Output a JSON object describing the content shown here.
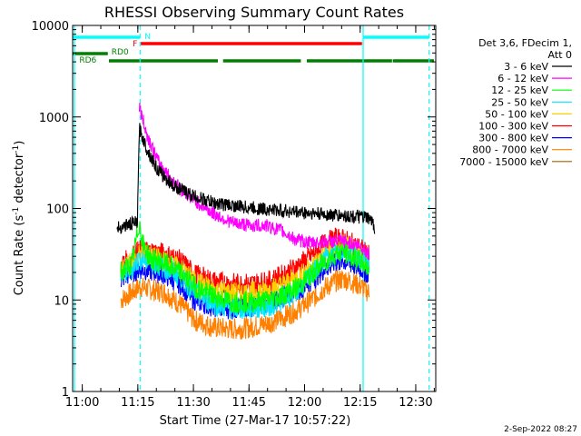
{
  "title": "RHESSI Observing Summary Count Rates",
  "xlabel": "Start Time (27-Mar-17 10:57:22)",
  "ylabel_main": "Count Rate (s",
  "ylabel_sup": "-1",
  "ylabel_mid": " detector",
  "ylabel_sup2": "-1",
  "ylabel_end": ")",
  "date_stamp": "2-Sep-2022 08:27",
  "legend_header_1": "Det 3,6, FDecim 1,",
  "legend_header_2": "Att 0",
  "obs_labels": {
    "night": "N",
    "flare": "F",
    "rd0": "RD0",
    "rd6": "RD6"
  },
  "chart_data": {
    "type": "line",
    "x_unit": "minutes after 10:57:22",
    "xlim": [
      0,
      98
    ],
    "ylim": [
      1,
      10000
    ],
    "yscale": "log",
    "x_ticks": [
      {
        "label": "11:00",
        "x": 2.6
      },
      {
        "label": "11:15",
        "x": 17.6
      },
      {
        "label": "11:30",
        "x": 32.6
      },
      {
        "label": "11:45",
        "x": 47.6
      },
      {
        "label": "12:00",
        "x": 62.6
      },
      {
        "label": "12:15",
        "x": 77.6
      },
      {
        "label": "12:30",
        "x": 92.6
      }
    ],
    "y_ticks": [
      {
        "label": "1",
        "y": 1
      },
      {
        "label": "10",
        "y": 10
      },
      {
        "label": "100",
        "y": 100
      },
      {
        "label": "1000",
        "y": 1000
      },
      {
        "label": "10000",
        "y": 10000
      }
    ],
    "series": [
      {
        "name": "3 - 6 keV",
        "color": "#000000",
        "points": [
          [
            12,
            60
          ],
          [
            14,
            65
          ],
          [
            16,
            68
          ],
          [
            17.5,
            70
          ],
          [
            18,
            750
          ],
          [
            20,
            450
          ],
          [
            23,
            260
          ],
          [
            27,
            180
          ],
          [
            32,
            140
          ],
          [
            38,
            115
          ],
          [
            45,
            105
          ],
          [
            52,
            98
          ],
          [
            60,
            92
          ],
          [
            68,
            86
          ],
          [
            75,
            82
          ],
          [
            78,
            80
          ],
          [
            79.5,
            78
          ],
          [
            81,
            70
          ],
          [
            81.5,
            62
          ]
        ]
      },
      {
        "name": "6 - 12 keV",
        "color": "#ff00ff",
        "points": [
          [
            18,
            1300
          ],
          [
            20,
            650
          ],
          [
            23,
            330
          ],
          [
            27,
            200
          ],
          [
            32,
            130
          ],
          [
            38,
            88
          ],
          [
            43,
            70
          ],
          [
            48,
            65
          ],
          [
            52,
            65
          ],
          [
            56,
            58
          ],
          [
            60,
            46
          ],
          [
            64,
            42
          ],
          [
            68,
            43
          ],
          [
            72,
            44
          ],
          [
            75,
            42
          ],
          [
            78,
            38
          ],
          [
            80,
            32
          ]
        ]
      },
      {
        "name": "12 - 25 keV",
        "color": "#00ff00",
        "points": [
          [
            13,
            20
          ],
          [
            16,
            25
          ],
          [
            18,
            70
          ],
          [
            19,
            40
          ],
          [
            21,
            28
          ],
          [
            25,
            25
          ],
          [
            29,
            20
          ],
          [
            33,
            14
          ],
          [
            38,
            11
          ],
          [
            43,
            9.5
          ],
          [
            48,
            9.5
          ],
          [
            53,
            10
          ],
          [
            57,
            11.5
          ],
          [
            61,
            14
          ],
          [
            65,
            20
          ],
          [
            68,
            26
          ],
          [
            71,
            32
          ],
          [
            73,
            34
          ],
          [
            75,
            30
          ],
          [
            78,
            26
          ],
          [
            80,
            22
          ]
        ]
      },
      {
        "name": "25 - 50 keV",
        "color": "#00e5ff",
        "points": [
          [
            13,
            18
          ],
          [
            16,
            22
          ],
          [
            18,
            28
          ],
          [
            21,
            26
          ],
          [
            25,
            22
          ],
          [
            29,
            18
          ],
          [
            33,
            12
          ],
          [
            38,
            9
          ],
          [
            43,
            8
          ],
          [
            48,
            8
          ],
          [
            53,
            8.5
          ],
          [
            57,
            10
          ],
          [
            61,
            13
          ],
          [
            65,
            20
          ],
          [
            68,
            28
          ],
          [
            71,
            33
          ],
          [
            73,
            35
          ],
          [
            75,
            33
          ],
          [
            78,
            28
          ],
          [
            80,
            24
          ]
        ]
      },
      {
        "name": "50 - 100 keV",
        "color": "#ffd000",
        "points": [
          [
            13,
            20
          ],
          [
            16,
            26
          ],
          [
            18,
            32
          ],
          [
            21,
            30
          ],
          [
            25,
            26
          ],
          [
            29,
            22
          ],
          [
            33,
            16
          ],
          [
            38,
            13
          ],
          [
            43,
            12
          ],
          [
            48,
            12
          ],
          [
            53,
            13
          ],
          [
            57,
            15
          ],
          [
            61,
            18
          ],
          [
            65,
            24
          ],
          [
            68,
            32
          ],
          [
            71,
            38
          ],
          [
            73,
            40
          ],
          [
            75,
            37
          ],
          [
            78,
            30
          ],
          [
            80,
            25
          ]
        ]
      },
      {
        "name": "100 - 300 keV",
        "color": "#ff0000",
        "points": [
          [
            13,
            24
          ],
          [
            16,
            30
          ],
          [
            18,
            35
          ],
          [
            21,
            34
          ],
          [
            25,
            32
          ],
          [
            29,
            27
          ],
          [
            33,
            19
          ],
          [
            38,
            16
          ],
          [
            43,
            15
          ],
          [
            48,
            15
          ],
          [
            53,
            16
          ],
          [
            57,
            19
          ],
          [
            61,
            24
          ],
          [
            65,
            32
          ],
          [
            68,
            42
          ],
          [
            71,
            47
          ],
          [
            73,
            46
          ],
          [
            75,
            42
          ],
          [
            78,
            36
          ],
          [
            80,
            30
          ]
        ]
      },
      {
        "name": "300 - 800 keV",
        "color": "#0000ff",
        "points": [
          [
            13,
            17
          ],
          [
            16,
            20
          ],
          [
            18,
            22
          ],
          [
            21,
            21
          ],
          [
            25,
            19
          ],
          [
            29,
            15
          ],
          [
            33,
            10
          ],
          [
            38,
            8.5
          ],
          [
            43,
            8
          ],
          [
            48,
            8.5
          ],
          [
            53,
            9.5
          ],
          [
            57,
            11
          ],
          [
            61,
            13
          ],
          [
            65,
            17
          ],
          [
            68,
            22
          ],
          [
            71,
            26
          ],
          [
            73,
            27
          ],
          [
            75,
            25
          ],
          [
            78,
            22
          ],
          [
            80,
            19
          ]
        ]
      },
      {
        "name": "800 - 7000 keV",
        "color": "#ff8000",
        "points": [
          [
            13,
            10
          ],
          [
            16,
            12
          ],
          [
            18,
            14
          ],
          [
            21,
            13
          ],
          [
            25,
            12
          ],
          [
            29,
            9
          ],
          [
            33,
            6
          ],
          [
            38,
            5
          ],
          [
            43,
            4.8
          ],
          [
            48,
            5
          ],
          [
            53,
            5.6
          ],
          [
            57,
            6.5
          ],
          [
            61,
            8
          ],
          [
            65,
            10.5
          ],
          [
            68,
            13.5
          ],
          [
            71,
            16
          ],
          [
            73,
            17
          ],
          [
            75,
            16
          ],
          [
            78,
            14
          ],
          [
            80,
            12
          ]
        ]
      },
      {
        "name": "7000 - 15000 keV",
        "color": "#a06000",
        "points": []
      }
    ],
    "observing_bars": [
      {
        "label": "N",
        "color": "#00ffff",
        "segments": [
          [
            0,
            18.2
          ],
          [
            78.4,
            96.2
          ]
        ]
      },
      {
        "label": "F",
        "color": "#ff0000",
        "segments": [
          [
            18.4,
            78.1
          ]
        ]
      },
      {
        "label": "RD0",
        "color": "#008000",
        "segments": [
          [
            0,
            9.5
          ]
        ]
      },
      {
        "label": "RD6",
        "color": "#008000",
        "segments": [
          [
            9.8,
            39.2
          ],
          [
            40.6,
            61.6
          ],
          [
            63.2,
            86.2
          ],
          [
            86.4,
            97.5
          ]
        ]
      }
    ],
    "vlines_solid": [
      0.5,
      78.4
    ],
    "vlines_dashed": [
      18.2,
      96.2
    ]
  }
}
